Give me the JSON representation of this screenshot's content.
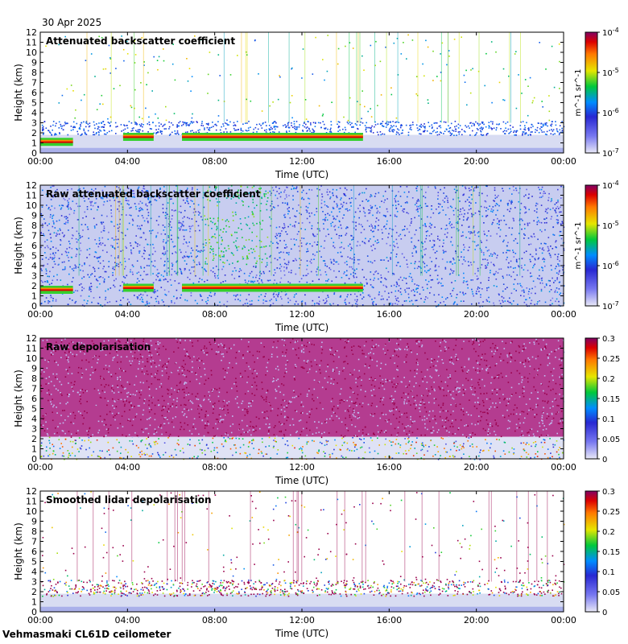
{
  "date": "30 Apr 2025",
  "site": "Vehmasmaki CL61D ceilometer",
  "colors": {
    "background_plot": "#ffffff",
    "low_fill": "#d8dcf2",
    "cloud_layer": "#3a3ad6"
  },
  "chart_data": [
    {
      "type": "heatmap",
      "title": "Attenuated backscatter coefficient",
      "xlabel": "Time (UTC)",
      "ylabel": "Height (km)",
      "xticks": [
        "00:00",
        "04:00",
        "08:00",
        "12:00",
        "16:00",
        "20:00",
        "00:00"
      ],
      "yticks": [
        "0",
        "1",
        "2",
        "3",
        "4",
        "5",
        "6",
        "7",
        "8",
        "9",
        "10",
        "11",
        "12"
      ],
      "xlim_hours": [
        0,
        24
      ],
      "ylim_km": [
        0,
        12
      ],
      "colorbar": {
        "scale": "log",
        "range": [
          1e-07,
          0.0001
        ],
        "tick_labels": [
          "10^-7",
          "10^-6",
          "10^-5",
          "10^-4"
        ],
        "unit": "m^-1 sr^-1"
      },
      "features": {
        "boundary_layer_top_km": 1.8,
        "cloud_base_km": [
          {
            "from_hour": 0.0,
            "to_hour": 1.5,
            "height_km": 1.0
          },
          {
            "from_hour": 3.8,
            "to_hour": 5.2,
            "height_km": 1.5
          },
          {
            "from_hour": 6.5,
            "to_hour": 14.8,
            "height_km": 1.5
          }
        ],
        "noise_ceiling_km": 3.0
      }
    },
    {
      "type": "heatmap",
      "title": "Raw attenuated backscatter coefficient",
      "xlabel": "Time (UTC)",
      "ylabel": "Height (km)",
      "xticks": [
        "00:00",
        "04:00",
        "08:00",
        "12:00",
        "16:00",
        "20:00",
        "00:00"
      ],
      "yticks": [
        "0",
        "1",
        "2",
        "3",
        "4",
        "5",
        "6",
        "7",
        "8",
        "9",
        "10",
        "11",
        "12"
      ],
      "xlim_hours": [
        0,
        24
      ],
      "ylim_km": [
        0,
        12
      ],
      "colorbar": {
        "scale": "log",
        "range": [
          1e-07,
          0.0001
        ],
        "tick_labels": [
          "10^-7",
          "10^-6",
          "10^-5",
          "10^-4"
        ],
        "unit": "m^-1 sr^-1"
      },
      "features": {
        "cloud_base_km": [
          {
            "from_hour": 0.0,
            "to_hour": 1.5,
            "height_km": 1.5
          },
          {
            "from_hour": 3.8,
            "to_hour": 5.2,
            "height_km": 1.7
          },
          {
            "from_hour": 6.5,
            "to_hour": 14.8,
            "height_km": 1.7
          }
        ],
        "high_signal_hours": [
          7.5,
          10.5
        ]
      }
    },
    {
      "type": "heatmap",
      "title": "Raw depolarisation",
      "xlabel": "Time (UTC)",
      "ylabel": "Height (km)",
      "xticks": [
        "00:00",
        "04:00",
        "08:00",
        "12:00",
        "16:00",
        "20:00",
        "00:00"
      ],
      "yticks": [
        "0",
        "1",
        "2",
        "3",
        "4",
        "5",
        "6",
        "7",
        "8",
        "9",
        "10",
        "11",
        "12"
      ],
      "xlim_hours": [
        0,
        24
      ],
      "ylim_km": [
        0,
        12
      ],
      "colorbar": {
        "scale": "linear",
        "range": [
          0,
          0.3
        ],
        "tick_labels": [
          "0",
          "0.05",
          "0.1",
          "0.15",
          "0.2",
          "0.25",
          "0.3"
        ]
      },
      "features": {
        "noise_floor_km": 2.2
      }
    },
    {
      "type": "heatmap",
      "title": "Smoothed lidar depolarisation",
      "xlabel": "Time (UTC)",
      "ylabel": "Height (km)",
      "xticks": [
        "00:00",
        "04:00",
        "08:00",
        "12:00",
        "16:00",
        "20:00",
        "00:00"
      ],
      "yticks": [
        "0",
        "1",
        "2",
        "3",
        "4",
        "5",
        "6",
        "7",
        "8",
        "9",
        "10",
        "11",
        "12"
      ],
      "xlim_hours": [
        0,
        24
      ],
      "ylim_km": [
        0,
        12
      ],
      "colorbar": {
        "scale": "linear",
        "range": [
          0,
          0.3
        ],
        "tick_labels": [
          "0",
          "0.05",
          "0.1",
          "0.15",
          "0.2",
          "0.25",
          "0.3"
        ]
      },
      "features": {
        "boundary_layer_top_km": 1.8,
        "noise_ceiling_km": 3.0
      }
    }
  ]
}
